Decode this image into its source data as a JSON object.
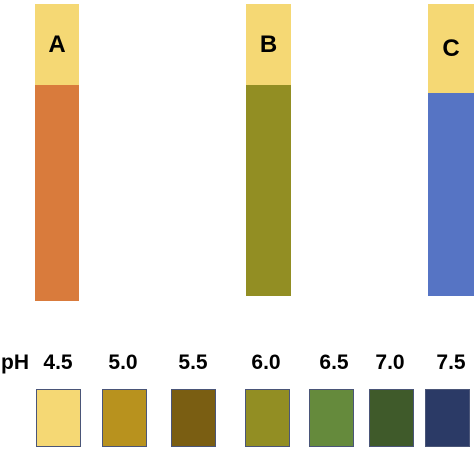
{
  "strips": [
    {
      "label": "A",
      "top_color": "#f5d874",
      "bottom_color": "#d97b3c"
    },
    {
      "label": "B",
      "top_color": "#f5d874",
      "bottom_color": "#928e23"
    },
    {
      "label": "C",
      "top_color": "#f5d874",
      "bottom_color": "#5674c4"
    }
  ],
  "scale": {
    "prefix": "pH",
    "values": [
      "4.5",
      "5.0",
      "5.5",
      "6.0",
      "6.5",
      "7.0",
      "7.5"
    ],
    "colors": [
      "#f5d874",
      "#b8921e",
      "#7a5e12",
      "#928e23",
      "#658a3c",
      "#3f5a2a",
      "#2b3a66"
    ]
  }
}
